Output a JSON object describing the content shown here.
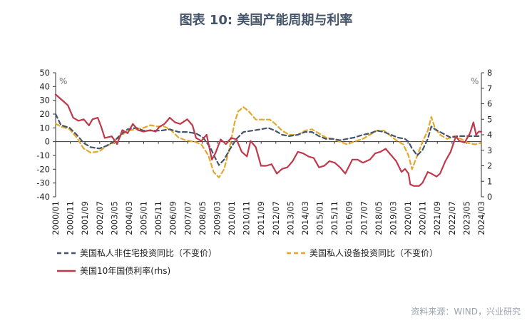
{
  "title": "图表 10: 美国产能周期与利率",
  "source": "资料来源：WIND，兴业研究",
  "chart_data": {
    "type": "line",
    "left_axis": {
      "unit": "%",
      "ylim": [
        -40,
        50
      ],
      "ticks": [
        "50",
        "40",
        "30",
        "20",
        "10",
        "0",
        "-10",
        "-20",
        "-30",
        "-40"
      ]
    },
    "right_axis": {
      "unit": "%",
      "ylim": [
        0,
        8
      ],
      "ticks": [
        "8",
        "7",
        "6",
        "5",
        "4",
        "3",
        "2",
        "1",
        "0"
      ]
    },
    "x_ticks": [
      "2000/01",
      "2000/11",
      "2001/09",
      "2002/07",
      "2003/05",
      "2004/03",
      "2005/01",
      "2005/11",
      "2006/09",
      "2007/07",
      "2008/05",
      "2009/03",
      "2010/01",
      "2010/11",
      "2011/09",
      "2012/07",
      "2013/05",
      "2014/03",
      "2015/01",
      "2015/11",
      "2016/09",
      "2017/07",
      "2018/05",
      "2019/03",
      "2020/01",
      "2020/11",
      "2021/09",
      "2022/07",
      "2023/05",
      "2024/03"
    ],
    "series": [
      {
        "name": "美国私人非住宅投资同比（不变价）",
        "axis": "left",
        "color": "#44546a",
        "style": "dash",
        "points": [
          [
            2000.0,
            20
          ],
          [
            2000.3,
            12
          ],
          [
            2000.8,
            10
          ],
          [
            2001.2,
            5
          ],
          [
            2001.6,
            -1
          ],
          [
            2002.0,
            -4
          ],
          [
            2002.5,
            -5
          ],
          [
            2002.9,
            -3
          ],
          [
            2003.3,
            0
          ],
          [
            2003.7,
            5
          ],
          [
            2004.1,
            9
          ],
          [
            2004.6,
            10
          ],
          [
            2005.0,
            8
          ],
          [
            2005.5,
            8
          ],
          [
            2006.0,
            8
          ],
          [
            2006.5,
            9
          ],
          [
            2007.0,
            7
          ],
          [
            2007.5,
            7
          ],
          [
            2008.0,
            6
          ],
          [
            2008.4,
            3
          ],
          [
            2008.8,
            -4
          ],
          [
            2009.1,
            -12
          ],
          [
            2009.3,
            -17
          ],
          [
            2009.6,
            -13
          ],
          [
            2009.9,
            -6
          ],
          [
            2010.3,
            2
          ],
          [
            2010.7,
            7
          ],
          [
            2011.2,
            8
          ],
          [
            2011.7,
            9
          ],
          [
            2012.1,
            10
          ],
          [
            2012.5,
            8
          ],
          [
            2012.9,
            5
          ],
          [
            2013.3,
            4
          ],
          [
            2013.8,
            5
          ],
          [
            2014.2,
            7
          ],
          [
            2014.6,
            7
          ],
          [
            2015.0,
            4
          ],
          [
            2015.4,
            2
          ],
          [
            2015.8,
            2
          ],
          [
            2016.2,
            1
          ],
          [
            2016.6,
            2
          ],
          [
            2017.0,
            3
          ],
          [
            2017.5,
            5
          ],
          [
            2017.9,
            6
          ],
          [
            2018.3,
            8
          ],
          [
            2018.7,
            7
          ],
          [
            2019.1,
            5
          ],
          [
            2019.5,
            3
          ],
          [
            2019.9,
            2
          ],
          [
            2020.1,
            0
          ],
          [
            2020.3,
            -5
          ],
          [
            2020.6,
            -10
          ],
          [
            2020.9,
            -6
          ],
          [
            2021.2,
            2
          ],
          [
            2021.4,
            11
          ],
          [
            2021.6,
            9
          ],
          [
            2021.9,
            7
          ],
          [
            2022.2,
            5
          ],
          [
            2022.5,
            3
          ],
          [
            2022.9,
            4
          ],
          [
            2023.2,
            4
          ],
          [
            2023.6,
            4
          ],
          [
            2023.9,
            4
          ],
          [
            2024.2,
            4
          ]
        ]
      },
      {
        "name": "美国私人设备投资同比（不变价）",
        "axis": "left",
        "color": "#e5a72b",
        "style": "dash",
        "points": [
          [
            2000.0,
            13
          ],
          [
            2000.3,
            11
          ],
          [
            2000.8,
            9
          ],
          [
            2001.2,
            3
          ],
          [
            2001.6,
            -5
          ],
          [
            2002.0,
            -8
          ],
          [
            2002.5,
            -7
          ],
          [
            2002.9,
            -3
          ],
          [
            2003.3,
            -1
          ],
          [
            2003.7,
            4
          ],
          [
            2004.1,
            8
          ],
          [
            2004.6,
            9
          ],
          [
            2005.0,
            10
          ],
          [
            2005.4,
            12
          ],
          [
            2005.8,
            11
          ],
          [
            2006.2,
            11
          ],
          [
            2006.6,
            8
          ],
          [
            2007.0,
            3
          ],
          [
            2007.4,
            1
          ],
          [
            2007.9,
            0
          ],
          [
            2008.3,
            -2
          ],
          [
            2008.7,
            -10
          ],
          [
            2009.0,
            -22
          ],
          [
            2009.3,
            -26
          ],
          [
            2009.6,
            -20
          ],
          [
            2009.9,
            -5
          ],
          [
            2010.2,
            14
          ],
          [
            2010.4,
            22
          ],
          [
            2010.7,
            25
          ],
          [
            2011.0,
            22
          ],
          [
            2011.4,
            16
          ],
          [
            2011.8,
            16
          ],
          [
            2012.2,
            16
          ],
          [
            2012.5,
            13
          ],
          [
            2012.9,
            8
          ],
          [
            2013.3,
            5
          ],
          [
            2013.8,
            5
          ],
          [
            2014.2,
            8
          ],
          [
            2014.6,
            9
          ],
          [
            2015.0,
            6
          ],
          [
            2015.4,
            3
          ],
          [
            2015.8,
            2
          ],
          [
            2016.2,
            0
          ],
          [
            2016.6,
            -2
          ],
          [
            2017.0,
            0
          ],
          [
            2017.5,
            2
          ],
          [
            2017.9,
            5
          ],
          [
            2018.3,
            8
          ],
          [
            2018.7,
            8
          ],
          [
            2019.0,
            5
          ],
          [
            2019.4,
            1
          ],
          [
            2019.8,
            -2
          ],
          [
            2020.1,
            -10
          ],
          [
            2020.3,
            -20
          ],
          [
            2020.6,
            -10
          ],
          [
            2020.9,
            0
          ],
          [
            2021.2,
            8
          ],
          [
            2021.4,
            18
          ],
          [
            2021.6,
            10
          ],
          [
            2021.9,
            5
          ],
          [
            2022.3,
            2
          ],
          [
            2022.7,
            4
          ],
          [
            2023.1,
            2
          ],
          [
            2023.5,
            -1
          ],
          [
            2023.9,
            -2
          ],
          [
            2024.2,
            -1
          ]
        ]
      },
      {
        "name": "美国10年国债利率(rhs)",
        "axis": "right",
        "color": "#c0394b",
        "style": "solid",
        "points": [
          [
            2000.0,
            6.6
          ],
          [
            2000.3,
            6.3
          ],
          [
            2000.7,
            5.9
          ],
          [
            2001.0,
            5.1
          ],
          [
            2001.3,
            4.9
          ],
          [
            2001.6,
            5.0
          ],
          [
            2001.9,
            4.6
          ],
          [
            2002.1,
            5.0
          ],
          [
            2002.4,
            5.1
          ],
          [
            2002.6,
            4.5
          ],
          [
            2002.8,
            3.8
          ],
          [
            2003.2,
            3.9
          ],
          [
            2003.5,
            3.4
          ],
          [
            2003.8,
            4.3
          ],
          [
            2004.1,
            4.1
          ],
          [
            2004.4,
            4.7
          ],
          [
            2004.7,
            4.3
          ],
          [
            2005.0,
            4.2
          ],
          [
            2005.4,
            4.3
          ],
          [
            2005.7,
            4.2
          ],
          [
            2005.9,
            4.5
          ],
          [
            2006.2,
            4.7
          ],
          [
            2006.5,
            5.1
          ],
          [
            2006.8,
            4.8
          ],
          [
            2007.1,
            4.7
          ],
          [
            2007.5,
            5.0
          ],
          [
            2007.8,
            4.6
          ],
          [
            2008.0,
            3.8
          ],
          [
            2008.3,
            3.6
          ],
          [
            2008.6,
            4.0
          ],
          [
            2008.9,
            2.4
          ],
          [
            2009.1,
            2.8
          ],
          [
            2009.4,
            3.7
          ],
          [
            2009.7,
            3.4
          ],
          [
            2010.0,
            3.8
          ],
          [
            2010.3,
            3.7
          ],
          [
            2010.6,
            2.9
          ],
          [
            2010.9,
            2.6
          ],
          [
            2011.1,
            3.6
          ],
          [
            2011.4,
            3.2
          ],
          [
            2011.7,
            2.0
          ],
          [
            2012.0,
            2.0
          ],
          [
            2012.3,
            2.1
          ],
          [
            2012.6,
            1.5
          ],
          [
            2012.9,
            1.8
          ],
          [
            2013.2,
            1.9
          ],
          [
            2013.5,
            2.3
          ],
          [
            2013.8,
            2.9
          ],
          [
            2014.1,
            2.8
          ],
          [
            2014.4,
            2.6
          ],
          [
            2014.7,
            2.5
          ],
          [
            2015.0,
            1.9
          ],
          [
            2015.3,
            2.0
          ],
          [
            2015.6,
            2.3
          ],
          [
            2015.9,
            2.2
          ],
          [
            2016.2,
            1.9
          ],
          [
            2016.5,
            1.5
          ],
          [
            2016.9,
            2.4
          ],
          [
            2017.2,
            2.4
          ],
          [
            2017.5,
            2.2
          ],
          [
            2017.9,
            2.4
          ],
          [
            2018.2,
            2.8
          ],
          [
            2018.5,
            2.9
          ],
          [
            2018.8,
            3.1
          ],
          [
            2019.1,
            2.7
          ],
          [
            2019.4,
            2.3
          ],
          [
            2019.7,
            1.6
          ],
          [
            2019.9,
            1.8
          ],
          [
            2020.1,
            1.5
          ],
          [
            2020.2,
            0.8
          ],
          [
            2020.4,
            0.7
          ],
          [
            2020.7,
            0.7
          ],
          [
            2020.9,
            0.9
          ],
          [
            2021.2,
            1.6
          ],
          [
            2021.4,
            1.5
          ],
          [
            2021.7,
            1.3
          ],
          [
            2021.9,
            1.5
          ],
          [
            2022.2,
            2.3
          ],
          [
            2022.5,
            2.9
          ],
          [
            2022.8,
            3.9
          ],
          [
            2023.0,
            3.6
          ],
          [
            2023.3,
            3.5
          ],
          [
            2023.6,
            4.1
          ],
          [
            2023.8,
            4.8
          ],
          [
            2023.95,
            4.0
          ],
          [
            2024.1,
            4.2
          ],
          [
            2024.25,
            4.2
          ]
        ]
      }
    ]
  }
}
